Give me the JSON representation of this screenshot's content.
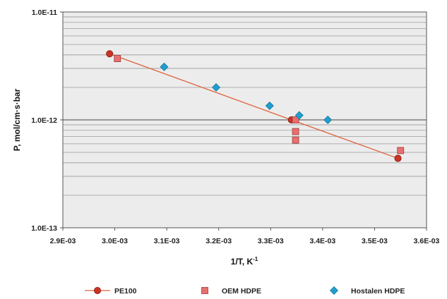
{
  "chart_data": {
    "type": "scatter",
    "xlabel": "1/T, K",
    "xlabel_sup": "-1",
    "ylabel": "P, mol/cm·s·bar",
    "xlim": [
      0.0029,
      0.0036
    ],
    "ylim": [
      1e-13,
      1e-11
    ],
    "y_scale": "log",
    "x_ticks": [
      "2.9E-03",
      "3.0E-03",
      "3.1E-03",
      "3.2E-03",
      "3.3E-03",
      "3.4E-03",
      "3.5E-03",
      "3.6E-03"
    ],
    "y_ticks": [
      "1.0E-13",
      "1.0E-12",
      "1.0E-11"
    ],
    "grid": "horizontal minor and major",
    "legend_position": "bottom",
    "series": [
      {
        "name": "PE100",
        "marker": "circle",
        "color": "#cc3322",
        "line": true,
        "line_color": "#e0603a",
        "x": [
          0.00299,
          0.00334,
          0.003545
        ],
        "y": [
          4.1e-12,
          1e-12,
          4.4e-13
        ]
      },
      {
        "name": "OEM HDPE",
        "marker": "square",
        "color": "#e87070",
        "line": false,
        "x": [
          0.003005,
          0.003348,
          0.003348,
          0.003348,
          0.00355
        ],
        "y": [
          3.7e-12,
          1e-12,
          7.8e-13,
          6.5e-13,
          5.2e-13
        ]
      },
      {
        "name": "Hostalen HDPE",
        "marker": "diamond",
        "color": "#1e9fd0",
        "line": false,
        "x": [
          0.003095,
          0.003195,
          0.003298,
          0.003355,
          0.00341
        ],
        "y": [
          3.1e-12,
          2e-12,
          1.35e-12,
          1.1e-12,
          1e-12
        ]
      }
    ]
  }
}
